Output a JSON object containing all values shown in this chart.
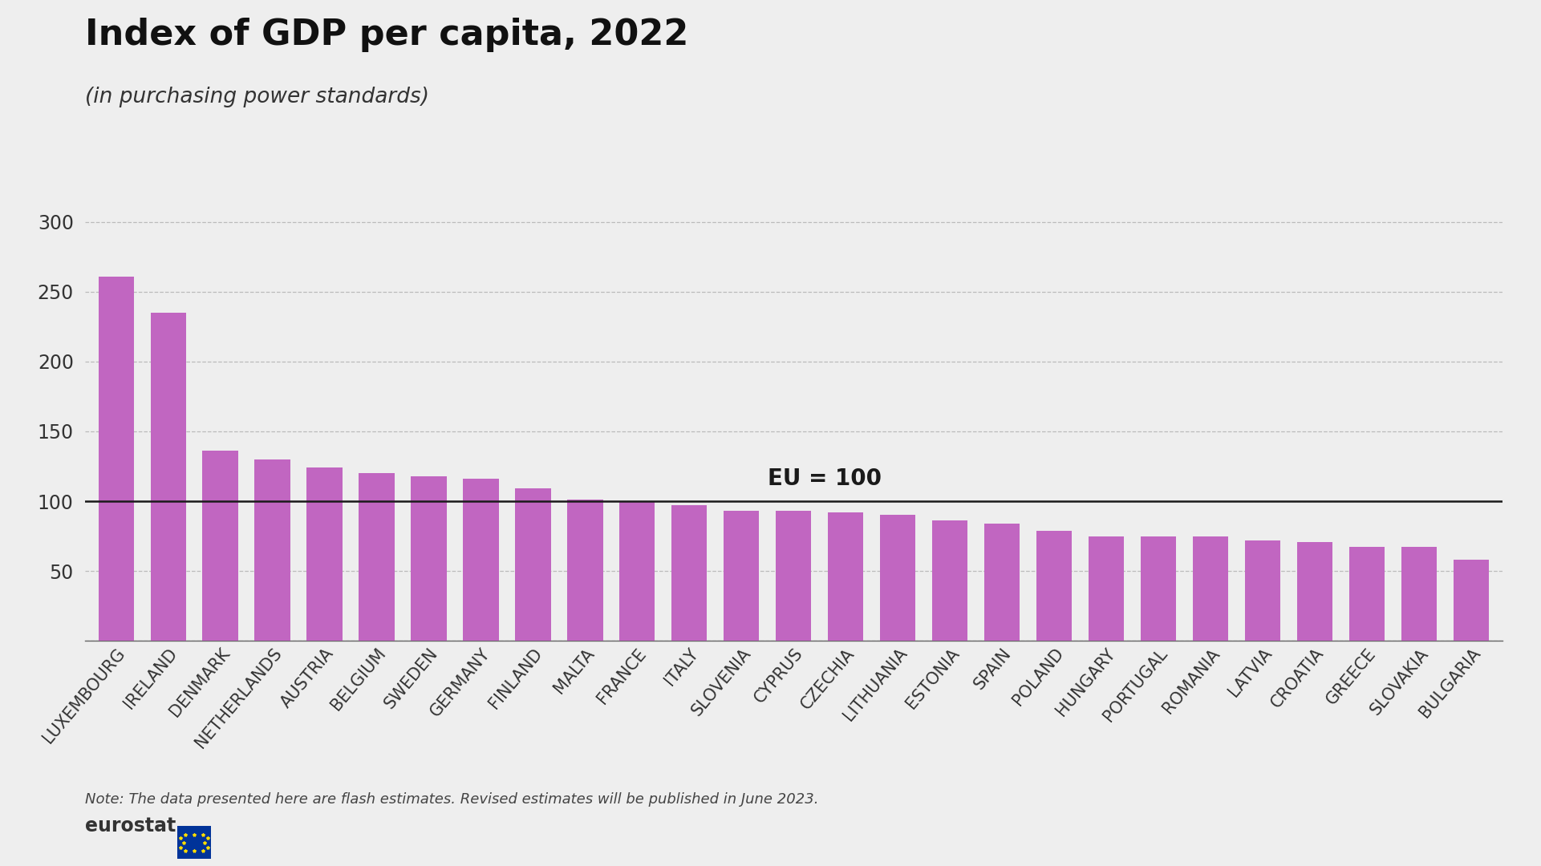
{
  "title": "Index of GDP per capita, 2022",
  "subtitle": "(in purchasing power standards)",
  "bar_color": "#c166c1",
  "background_color": "#eeeeee",
  "eu_line_value": 100,
  "eu_label": "EU = 100",
  "note": "Note: The data presented here are flash estimates. Revised estimates will be published in June 2023.",
  "ylim": [
    0,
    310
  ],
  "yticks": [
    0,
    50,
    100,
    150,
    200,
    250,
    300
  ],
  "categories": [
    "LUXEMBOURG",
    "IRELAND",
    "DENMARK",
    "NETHERLANDS",
    "AUSTRIA",
    "BELGIUM",
    "SWEDEN",
    "GERMANY",
    "FINLAND",
    "MALTA",
    "FRANCE",
    "ITALY",
    "SLOVENIA",
    "CYPRUS",
    "CZECHIA",
    "LITHUANIA",
    "ESTONIA",
    "SPAIN",
    "POLAND",
    "HUNGARY",
    "PORTUGAL",
    "ROMANIA",
    "LATVIA",
    "CROATIA",
    "GREECE",
    "SLOVAKIA",
    "BULGARIA"
  ],
  "values": [
    261,
    235,
    136,
    130,
    124,
    120,
    118,
    116,
    109,
    101,
    100,
    97,
    93,
    93,
    92,
    90,
    86,
    84,
    79,
    75,
    75,
    75,
    72,
    71,
    67,
    67,
    58
  ],
  "title_fontsize": 32,
  "subtitle_fontsize": 19,
  "tick_fontsize": 15,
  "note_fontsize": 13,
  "eu_label_fontsize": 20,
  "ytick_fontsize": 17
}
